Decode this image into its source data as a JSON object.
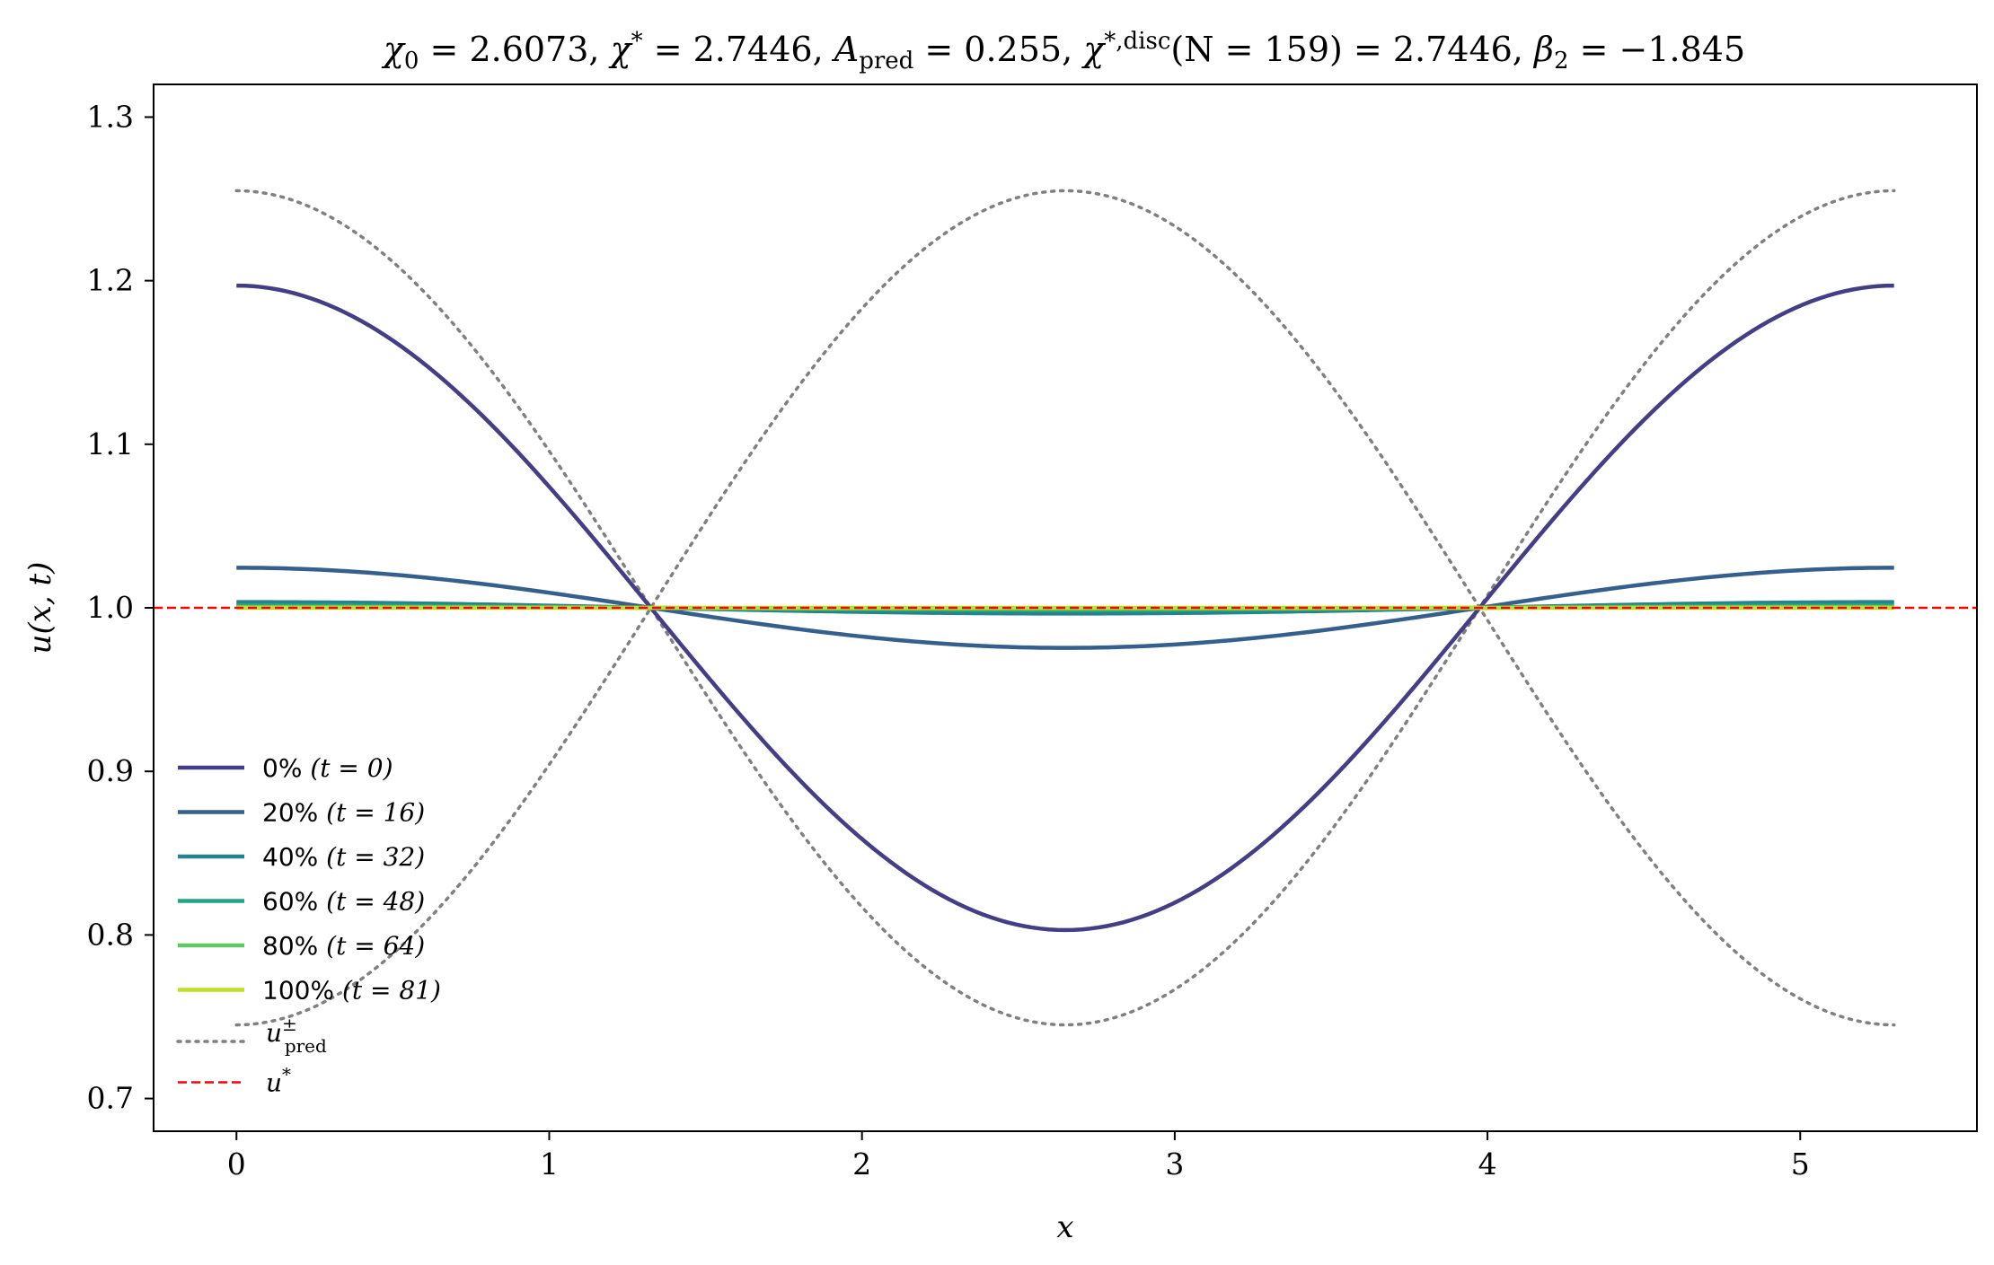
{
  "chart_data": {
    "type": "line",
    "title": "χ₀ = 2.6073,  χ* = 2.7446,  A_pred = 0.255,  χ*,disc(N = 159) = 2.7446,  β₂ = −1.845",
    "title_parts": {
      "chi0": "χ",
      "chi0_sub": "0",
      "chi0_val": " = 2.6073,  ",
      "chistar": "χ",
      "chistar_sup": "*",
      "chistar_val": " = 2.7446,  ",
      "apred": "A",
      "apred_sub": "pred",
      "apred_val": " = 0.255,  ",
      "chidisc": "χ",
      "chidisc_sup": "*,disc",
      "chidisc_val": "(N = 159) = 2.7446,  ",
      "beta": "β",
      "beta_sub": "2",
      "beta_val": " = −1.845"
    },
    "xlabel": "x",
    "ylabel": "u(x, t)",
    "xlim": [
      -0.265,
      5.565
    ],
    "ylim": [
      0.68,
      1.32
    ],
    "x_ticks": [
      0,
      1,
      2,
      3,
      4,
      5
    ],
    "x_tick_labels": [
      "0",
      "1",
      "2",
      "3",
      "4",
      "5"
    ],
    "y_ticks": [
      0.7,
      0.8,
      0.9,
      1.0,
      1.1,
      1.2,
      1.3
    ],
    "y_tick_labels": [
      "0.7",
      "0.8",
      "0.9",
      "1.0",
      "1.1",
      "1.2",
      "1.3"
    ],
    "grid": false,
    "legend_position": "lower-left",
    "domain_length": 5.3,
    "series": [
      {
        "name": "0% (t = 0)",
        "pct": "0%",
        "t_label": "(t = 0)",
        "color": "#433e85",
        "amplitude": 0.197,
        "style": "solid"
      },
      {
        "name": "20% (t = 16)",
        "pct": "20%",
        "t_label": "(t = 16)",
        "color": "#355f8d",
        "amplitude": 0.0245,
        "style": "solid"
      },
      {
        "name": "40% (t = 32)",
        "pct": "40%",
        "t_label": "(t = 32)",
        "color": "#26828e",
        "amplitude": 0.0035,
        "style": "solid"
      },
      {
        "name": "60% (t = 48)",
        "pct": "60%",
        "t_label": "(t = 48)",
        "color": "#21a585",
        "amplitude": 0.0015,
        "style": "solid"
      },
      {
        "name": "80% (t = 64)",
        "pct": "80%",
        "t_label": "(t = 64)",
        "color": "#5ec962",
        "amplitude": 0.0005,
        "style": "solid"
      },
      {
        "name": "100% (t = 81)",
        "pct": "100%",
        "t_label": "(t = 81)",
        "color": "#bddf26",
        "amplitude": 0.0,
        "style": "solid"
      }
    ],
    "predicted_bounds": {
      "name": "u±pred",
      "symbol": "u",
      "sup": "±",
      "sub": "pred",
      "color": "#808080",
      "amplitude": 0.255,
      "style": "dotted"
    },
    "steady_state": {
      "name": "u*",
      "symbol": "u",
      "sup": "*",
      "value": 1.0,
      "color": "#ff0000",
      "style": "dashed"
    }
  }
}
